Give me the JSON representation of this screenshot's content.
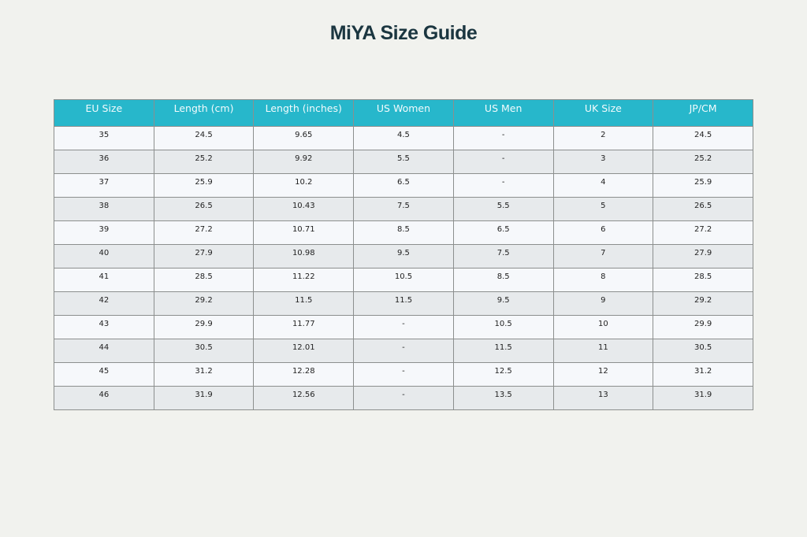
{
  "title": "MiYA Size Guide",
  "colors": {
    "background": "#f1f2ee",
    "header_fill": "#27b7cb",
    "header_text": "#f3fbfd",
    "row_odd": "#f6f8fb",
    "row_even": "#e7eaec",
    "title_text": "#1b3640"
  },
  "chart_data": {
    "type": "table",
    "title": "MiYA Size Guide",
    "columns": [
      "EU Size",
      "Length (cm)",
      "Length (inches)",
      "US Women",
      "US Men",
      "UK Size",
      "JP/CM"
    ],
    "rows": [
      [
        "35",
        "24.5",
        "9.65",
        "4.5",
        "-",
        "2",
        "24.5"
      ],
      [
        "36",
        "25.2",
        "9.92",
        "5.5",
        "-",
        "3",
        "25.2"
      ],
      [
        "37",
        "25.9",
        "10.2",
        "6.5",
        "-",
        "4",
        "25.9"
      ],
      [
        "38",
        "26.5",
        "10.43",
        "7.5",
        "5.5",
        "5",
        "26.5"
      ],
      [
        "39",
        "27.2",
        "10.71",
        "8.5",
        "6.5",
        "6",
        "27.2"
      ],
      [
        "40",
        "27.9",
        "10.98",
        "9.5",
        "7.5",
        "7",
        "27.9"
      ],
      [
        "41",
        "28.5",
        "11.22",
        "10.5",
        "8.5",
        "8",
        "28.5"
      ],
      [
        "42",
        "29.2",
        "11.5",
        "11.5",
        "9.5",
        "9",
        "29.2"
      ],
      [
        "43",
        "29.9",
        "11.77",
        "-",
        "10.5",
        "10",
        "29.9"
      ],
      [
        "44",
        "30.5",
        "12.01",
        "-",
        "11.5",
        "11",
        "30.5"
      ],
      [
        "45",
        "31.2",
        "12.28",
        "-",
        "12.5",
        "12",
        "31.2"
      ],
      [
        "46",
        "31.9",
        "12.56",
        "-",
        "13.5",
        "13",
        "31.9"
      ]
    ]
  }
}
